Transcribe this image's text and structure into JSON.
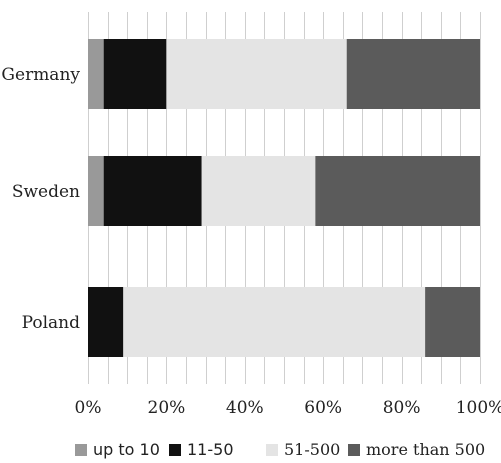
{
  "chart_data": {
    "type": "bar",
    "orientation": "horizontal",
    "stacked": true,
    "percent": true,
    "title": "",
    "xlabel": "",
    "ylabel": "",
    "xlim": [
      0,
      100
    ],
    "x_ticks": [
      "0%",
      "20%",
      "40%",
      "60%",
      "80%",
      "100%"
    ],
    "grid": true,
    "legend_position": "bottom",
    "categories": [
      "Germany",
      "Sweden",
      "Poland"
    ],
    "series": [
      {
        "name": "up to 10",
        "color": "#999999",
        "values": [
          4,
          4,
          0
        ]
      },
      {
        "name": "11-50",
        "color": "#111111",
        "values": [
          16,
          25,
          9
        ]
      },
      {
        "name": "51-500",
        "color": "#e4e4e4",
        "values": [
          46,
          29,
          77
        ]
      },
      {
        "name": "more than 500",
        "color": "#5b5b5b",
        "values": [
          34,
          42,
          14
        ]
      }
    ]
  }
}
